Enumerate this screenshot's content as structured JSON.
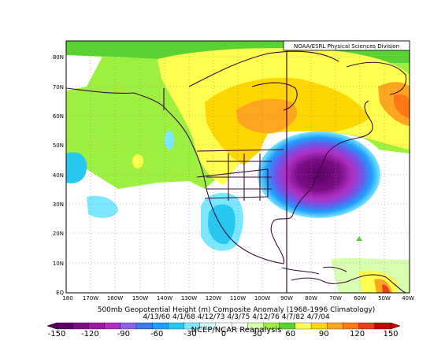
{
  "map": {
    "credit": "NOAA/ESRL Physical Sciences Division",
    "title_line1": "500mb Geopotential Height (m) Composite Anomaly (1968-1996 Climatology)",
    "title_line2": "4/13/60 4/1/68 4/12/73 4/3/75 4/12/76 4/7/82 4/7/04",
    "source": "NCEP/NCAR Reanalysis",
    "lat_labels": [
      "EQ",
      "10N",
      "20N",
      "30N",
      "40N",
      "50N",
      "60N",
      "70N",
      "80N"
    ],
    "lon_labels": [
      "180",
      "170W",
      "160W",
      "150W",
      "140W",
      "130W",
      "120W",
      "110W",
      "100W",
      "90W",
      "80W",
      "70W",
      "60W",
      "50W",
      "40W"
    ],
    "colorbar": {
      "labels": [
        "-150",
        "-120",
        "-90",
        "-60",
        "-30",
        "0",
        "30",
        "60",
        "90",
        "120",
        "150"
      ],
      "colors": [
        "#5a0064",
        "#7a0d86",
        "#9a1aa6",
        "#b02fc4",
        "#8a64e6",
        "#3c78f0",
        "#1e9eff",
        "#26c8f0",
        "#7ce8ff",
        "#d2f8ff",
        "#ffffff",
        "#ffffff",
        "#d8ffb0",
        "#9ef040",
        "#5ad232",
        "#ffff50",
        "#ffd700",
        "#ffa520",
        "#ff7818",
        "#f03c14",
        "#c80000"
      ]
    }
  }
}
